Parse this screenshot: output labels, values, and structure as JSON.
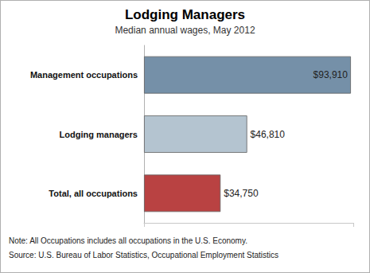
{
  "chart_data": {
    "type": "bar",
    "title": "Lodging Managers",
    "subtitle": "Median annual wages, May 2012",
    "categories": [
      "Management occupations",
      "Lodging managers",
      "Total, all occupations"
    ],
    "values": [
      93910,
      46810,
      34750
    ],
    "value_labels": [
      "$93,910",
      "$46,810",
      "$34,750"
    ],
    "colors": [
      "#7590a8",
      "#b4c4d0",
      "#b94242"
    ],
    "orientation": "horizontal",
    "data_labels": true,
    "tick_labels": "y",
    "grid": false,
    "xlim": [
      0,
      95000
    ],
    "xticks": [
      0,
      95000
    ],
    "notes": [
      "Note: All Occupations includes all occupations in the U.S. Economy.",
      "Source: U.S. Bureau of Labor Statistics, Occupational Employment Statistics"
    ]
  }
}
